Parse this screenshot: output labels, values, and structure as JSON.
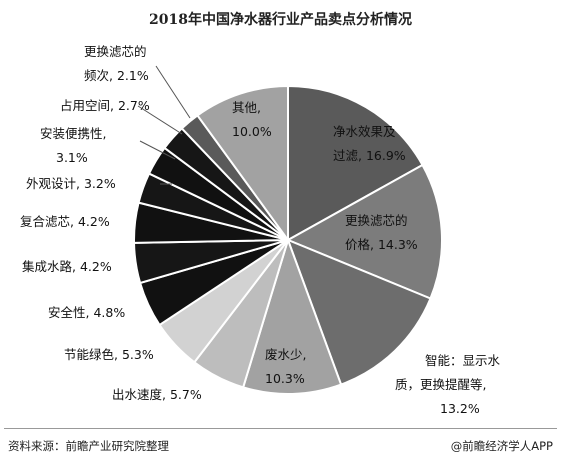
{
  "chart_data": {
    "type": "pie",
    "title": "2018年中国净水器行业产品卖点分析情况",
    "slices": [
      {
        "label": "净水效果及过滤",
        "value": 16.9,
        "value_label": "16.9%",
        "color": "#5a5a5a"
      },
      {
        "label": "更换滤芯的价格",
        "value": 14.3,
        "value_label": "14.3%",
        "color": "#7c7c7c"
      },
      {
        "label": "智能：显示水质，更换提醒等",
        "value": 13.2,
        "value_label": "13.2%",
        "color": "#6d6d6d"
      },
      {
        "label": "废水少",
        "value": 10.3,
        "value_label": "10.3%",
        "color": "#a2a2a2"
      },
      {
        "label": "出水速度",
        "value": 5.7,
        "value_label": "5.7%",
        "color": "#bdbdbd"
      },
      {
        "label": "节能绿色",
        "value": 5.3,
        "value_label": "5.3%",
        "color": "#d2d2d2"
      },
      {
        "label": "安全性",
        "value": 4.8,
        "value_label": "4.8%",
        "color": "#111111"
      },
      {
        "label": "集成水路",
        "value": 4.2,
        "value_label": "4.2%",
        "color": "#161616"
      },
      {
        "label": "复合滤芯",
        "value": 4.2,
        "value_label": "4.2%",
        "color": "#111111"
      },
      {
        "label": "外观设计",
        "value": 3.2,
        "value_label": "3.2%",
        "color": "#161616"
      },
      {
        "label": "安装便携性",
        "value": 3.1,
        "value_label": "3.1%",
        "color": "#111111"
      },
      {
        "label": "占用空间",
        "value": 2.7,
        "value_label": "2.7%",
        "color": "#161616"
      },
      {
        "label": "更换滤芯的频次",
        "value": 2.1,
        "value_label": "2.1%",
        "color": "#5a5a5a"
      },
      {
        "label": "其他",
        "value": 10.0,
        "value_label": "10.0%",
        "color": "#a2a2a2"
      }
    ]
  },
  "footer": {
    "source": "资料来源：前瞻产业研究院整理",
    "credit": "@前瞻经济学人APP"
  }
}
